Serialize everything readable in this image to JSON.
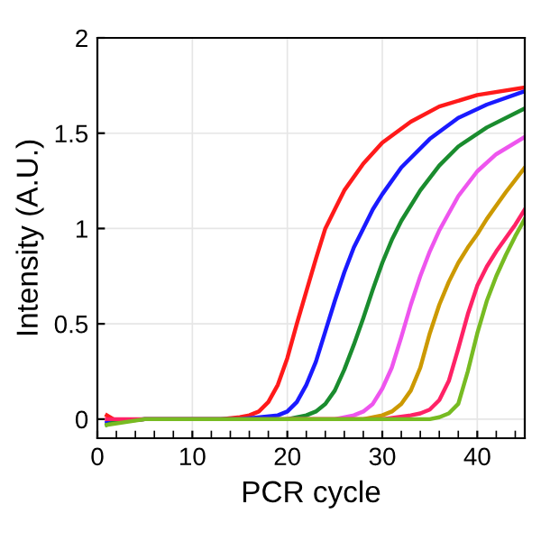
{
  "chart_data": {
    "type": "line",
    "xlabel": "PCR cycle",
    "ylabel": "Intensity (A.U.)",
    "xlim": [
      0,
      45
    ],
    "ylim": [
      -0.1,
      2
    ],
    "xticks": [
      0,
      {
        "value": 2,
        "label": null
      },
      {
        "value": 4,
        "label": null
      },
      {
        "value": 6,
        "label": null
      },
      {
        "value": 8,
        "label": null
      },
      10,
      {
        "value": 12,
        "label": null
      },
      {
        "value": 14,
        "label": null
      },
      {
        "value": 16,
        "label": null
      },
      {
        "value": 18,
        "label": null
      },
      20,
      {
        "value": 22,
        "label": null
      },
      {
        "value": 24,
        "label": null
      },
      {
        "value": 26,
        "label": null
      },
      {
        "value": 28,
        "label": null
      },
      30,
      {
        "value": 32,
        "label": null
      },
      {
        "value": 34,
        "label": null
      },
      {
        "value": 36,
        "label": null
      },
      {
        "value": 38,
        "label": null
      },
      40,
      {
        "value": 42,
        "label": null
      },
      {
        "value": 44,
        "label": null
      }
    ],
    "yticks": [
      0,
      0.5,
      1,
      1.5,
      2
    ],
    "grid": true,
    "marker": "none",
    "line_style": "solid",
    "series": [
      {
        "color": "#ff1a1a",
        "x": [
          1,
          2,
          3,
          5,
          8,
          10,
          13,
          15,
          16,
          17,
          18,
          19,
          20,
          21,
          22,
          23,
          24,
          25,
          26,
          28,
          30,
          33,
          36,
          40,
          45
        ],
        "values": [
          0.02,
          -0.01,
          -0.01,
          0,
          0,
          0,
          0,
          0.01,
          0.02,
          0.04,
          0.09,
          0.18,
          0.32,
          0.5,
          0.67,
          0.84,
          1.0,
          1.1,
          1.2,
          1.34,
          1.45,
          1.56,
          1.64,
          1.7,
          1.74
        ]
      },
      {
        "color": "#1a1aff",
        "x": [
          1,
          2,
          5,
          10,
          15,
          19,
          20,
          21,
          22,
          23,
          24,
          25,
          26,
          27,
          28,
          29,
          30,
          32,
          35,
          38,
          41,
          45
        ],
        "values": [
          -0.02,
          -0.01,
          0,
          0,
          0,
          0.02,
          0.04,
          0.09,
          0.18,
          0.3,
          0.46,
          0.62,
          0.77,
          0.9,
          1.0,
          1.1,
          1.18,
          1.32,
          1.47,
          1.58,
          1.65,
          1.72
        ]
      },
      {
        "color": "#1a8c2e",
        "x": [
          1,
          2,
          5,
          10,
          15,
          20,
          22,
          23,
          24,
          25,
          26,
          27,
          28,
          29,
          30,
          31,
          32,
          34,
          36,
          38,
          41,
          45
        ],
        "values": [
          -0.03,
          -0.01,
          0,
          0,
          0,
          0,
          0.02,
          0.04,
          0.08,
          0.15,
          0.26,
          0.39,
          0.53,
          0.68,
          0.82,
          0.94,
          1.04,
          1.2,
          1.33,
          1.43,
          1.53,
          1.63
        ]
      },
      {
        "color": "#ee55ee",
        "x": [
          20,
          25,
          27,
          28,
          29,
          30,
          31,
          32,
          33,
          34,
          35,
          36,
          37,
          38,
          40,
          42,
          45
        ],
        "values": [
          0,
          0,
          0.02,
          0.04,
          0.08,
          0.16,
          0.27,
          0.43,
          0.6,
          0.75,
          0.88,
          0.99,
          1.08,
          1.17,
          1.3,
          1.39,
          1.48
        ]
      },
      {
        "color": "#cc9900",
        "x": [
          20,
          28,
          30,
          31,
          32,
          33,
          34,
          35,
          36,
          37,
          38,
          39,
          40,
          41,
          42,
          43,
          45
        ],
        "values": [
          0,
          0,
          0.02,
          0.04,
          0.08,
          0.15,
          0.27,
          0.45,
          0.6,
          0.72,
          0.82,
          0.9,
          0.97,
          1.05,
          1.12,
          1.19,
          1.32
        ]
      },
      {
        "color": "#ff2266",
        "x": [
          1,
          5,
          10,
          20,
          30,
          33,
          34,
          35,
          36,
          37,
          38,
          39,
          40,
          41,
          42,
          43,
          44,
          45
        ],
        "values": [
          0,
          0,
          0,
          0,
          0,
          0.02,
          0.03,
          0.05,
          0.1,
          0.2,
          0.37,
          0.55,
          0.7,
          0.8,
          0.88,
          0.95,
          1.02,
          1.1
        ]
      },
      {
        "color": "#77bb22",
        "x": [
          1,
          5,
          10,
          20,
          30,
          35,
          36,
          37,
          38,
          39,
          40,
          41,
          42,
          43,
          44,
          45
        ],
        "values": [
          -0.03,
          0,
          0,
          0,
          0,
          0,
          0.01,
          0.03,
          0.08,
          0.25,
          0.45,
          0.62,
          0.75,
          0.86,
          0.96,
          1.05
        ]
      }
    ]
  }
}
